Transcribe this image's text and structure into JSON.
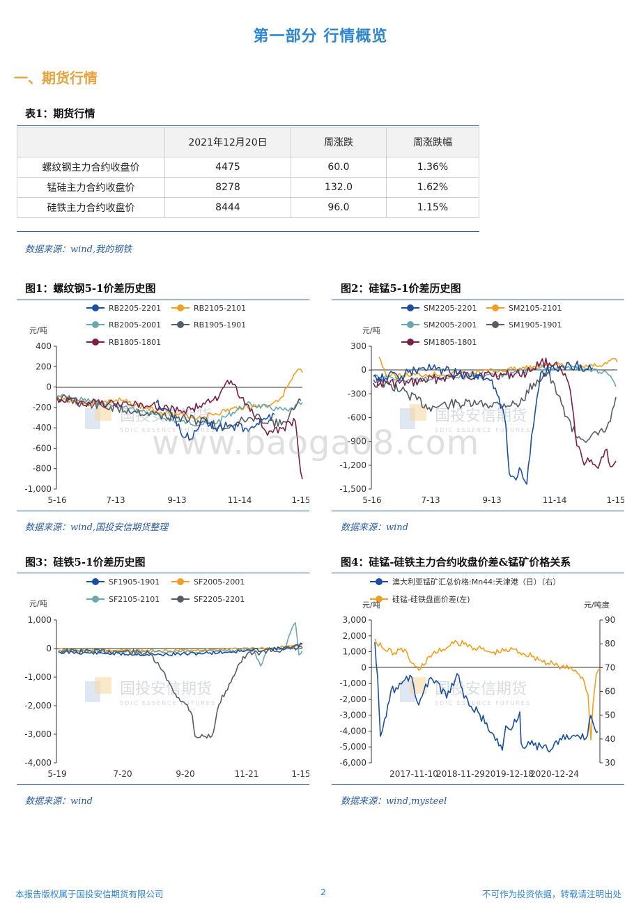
{
  "page_title": "第一部分 行情概览",
  "section_title": "一、期货行情",
  "table": {
    "caption": "表1：期货行情",
    "headers": [
      "",
      "2021年12月20日",
      "周涨跌",
      "周涨跌幅"
    ],
    "rows": [
      [
        "螺纹钢主力合约收盘价",
        "4475",
        "60.0",
        "1.36%"
      ],
      [
        "锰硅主力合约收盘价",
        "8278",
        "132.0",
        "1.62%"
      ],
      [
        "硅铁主力合约收盘价",
        "8444",
        "96.0",
        "1.15%"
      ]
    ],
    "source": "数据来源：wind,我的钢铁"
  },
  "watermark": {
    "cn": "国投安信期货",
    "en": "SDIC ESSENCE FUTURES",
    "site": "www.baogao8.com"
  },
  "colors": {
    "blue": "#1a4fa0",
    "orange": "#f0a020",
    "teal": "#6aa8b0",
    "gray": "#555e66",
    "maroon": "#7a1f4a",
    "accent": "#2e86d0",
    "rule": "#2a5d9f"
  },
  "charts": [
    {
      "caption": "图1：螺纹钢5-1价差历史图",
      "source": "数据来源：wind,国投安信期货整理",
      "unit": "元/吨",
      "legend": [
        "RB2205-2201",
        "RB2105-2101",
        "RB2005-2001",
        "RB1905-1901",
        "RB1805-1801"
      ],
      "y_ticks": [
        "400",
        "200",
        "0",
        "-200",
        "-400",
        "-600",
        "-800",
        "-1,000"
      ],
      "x_ticks": [
        "5-16",
        "7-13",
        "9-13",
        "11-14",
        "1-15"
      ]
    },
    {
      "caption": "图2：硅锰5-1价差历史图",
      "source": "数据来源：wind",
      "unit": "元/吨",
      "legend": [
        "SM2205-2201",
        "SM2105-2101",
        "SM2005-2001",
        "SM1905-1901",
        "SM1805-1801"
      ],
      "y_ticks": [
        "300",
        "0",
        "-300",
        "-600",
        "-900",
        "-1,200",
        "-1,500"
      ],
      "x_ticks": [
        "5-16",
        "7-13",
        "9-13",
        "11-14",
        "1-15"
      ]
    },
    {
      "caption": "图3：硅铁5-1价差历史图",
      "source": "数据来源：wind",
      "unit": "元/吨",
      "legend": [
        "SF1905-1901",
        "SF2005-2001",
        "SF2105-2101",
        "SF2205-2201"
      ],
      "y_ticks": [
        "1,000",
        "0",
        "-1,000",
        "-2,000",
        "-3,000",
        "-4,000"
      ],
      "x_ticks": [
        "5-19",
        "7-20",
        "9-20",
        "11-21",
        "1-15"
      ]
    },
    {
      "caption": "图4：硅锰-硅铁主力合约收盘价差&锰矿价格关系",
      "source": "数据来源：wind,mysteel",
      "unit_left": "元/吨",
      "unit_right": "元/吨度",
      "legend": [
        "澳大利亚锰矿汇总价格:Mn44:天津港（日）（右）",
        "硅锰-硅铁盘面价差(左)"
      ],
      "y_ticks_left": [
        "3,000",
        "2,000",
        "1,000",
        "0",
        "-1,000",
        "-2,000",
        "-3,000",
        "-4,000",
        "-5,000",
        "-6,000"
      ],
      "y_ticks_right": [
        "90",
        "80",
        "70",
        "60",
        "50",
        "40",
        "30"
      ],
      "x_ticks": [
        "2017-11-10",
        "2018-11-29",
        "2019-12-18",
        "2020-12-24"
      ]
    }
  ],
  "footer": {
    "left": "本报告版权属于国投安信期货有限公司",
    "page": "2",
    "right": "不可作为投资依据，转载请注明出处"
  }
}
